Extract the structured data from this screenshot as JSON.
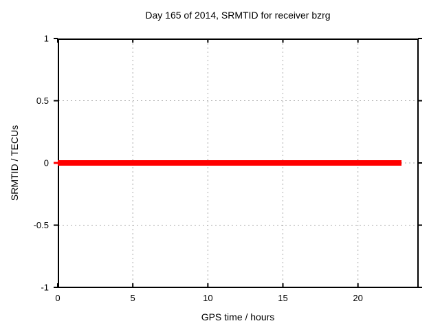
{
  "page": {
    "background": "#ffffff"
  },
  "chart_data": {
    "type": "line",
    "title": "Day 165 of 2014, SRMTID for receiver bzrg",
    "xlabel": "GPS time / hours",
    "ylabel": "SRMTID / TECUs",
    "xlim": [
      0,
      24
    ],
    "ylim": [
      -1,
      1
    ],
    "xticks": [
      0,
      5,
      10,
      15,
      20
    ],
    "xticklabels": [
      "0",
      "5",
      "10",
      "15",
      "20"
    ],
    "yticks": [
      1,
      0.5,
      0,
      -0.5,
      -1
    ],
    "yticklabels": [
      "1",
      "0.5",
      "0",
      "-0.5",
      "-1"
    ],
    "grid": "on",
    "grid_style": "dashed",
    "grid_color": "#a8a8a8",
    "border_color": "#000000",
    "legend": "none",
    "series": [
      {
        "name": "SRMTID",
        "color": "#ff0000",
        "linewidth": 8,
        "x": [
          0,
          22.9
        ],
        "y": [
          0,
          0
        ]
      }
    ]
  }
}
